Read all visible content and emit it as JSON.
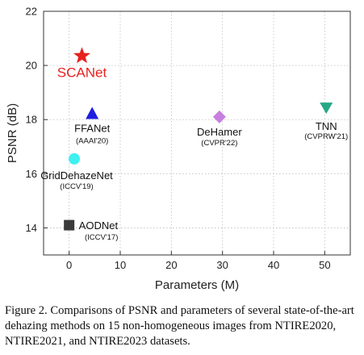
{
  "chart_data": {
    "type": "scatter",
    "xlabel": "Parameters (M)",
    "ylabel": "PSNR (dB)",
    "xlim": [
      -5,
      55
    ],
    "ylim": [
      13,
      22
    ],
    "xticks": [
      0,
      10,
      20,
      30,
      40,
      50
    ],
    "yticks": [
      14,
      16,
      18,
      20,
      22
    ],
    "grid": "dotted",
    "points": [
      {
        "name": "SCANet",
        "venue": "",
        "x": 2.5,
        "y": 20.35,
        "marker": "star",
        "color": "#e8211f",
        "highlight": true
      },
      {
        "name": "FFANet",
        "venue": "(AAAI'20)",
        "x": 4.5,
        "y": 18.2,
        "marker": "triangle-up",
        "color": "#1e1ee0",
        "highlight": false
      },
      {
        "name": "DeHamer",
        "venue": "(CVPR'22)",
        "x": 29.4,
        "y": 18.1,
        "marker": "diamond",
        "color": "#c77fe0",
        "highlight": false
      },
      {
        "name": "TNN",
        "venue": "(CVPRW'21)",
        "x": 50.3,
        "y": 18.45,
        "marker": "triangle-down",
        "color": "#27a886",
        "highlight": false
      },
      {
        "name": "GridDehazeNet",
        "venue": "(ICCV'19)",
        "x": 1.0,
        "y": 16.55,
        "marker": "circle",
        "color": "#3ff0f0",
        "highlight": false
      },
      {
        "name": "AODNet",
        "venue": "(ICCV'17)",
        "x": 0.0,
        "y": 14.1,
        "marker": "square",
        "color": "#3a3a3a",
        "highlight": false
      }
    ]
  },
  "caption": "Figure 2. Comparisons of PSNR and parameters of several state-of-the-art dehazing methods on 15 non-homogeneous images from NTIRE2020, NTIRE2021, and NTIRE2023 datasets."
}
